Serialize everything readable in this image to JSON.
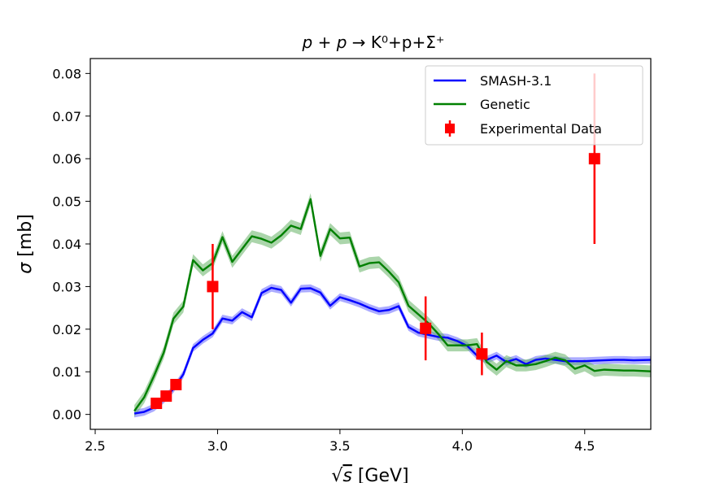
{
  "chart_data": {
    "type": "line",
    "title": "p + p → K⁰+p+Σ⁺",
    "title_parts": {
      "p1": "p",
      "plus": " + ",
      "p2": "p",
      "arrow": " → ",
      "rest": "K⁰+p+Σ⁺"
    },
    "xlabel": "√s [GeV]",
    "xlabel_parts": {
      "sqrt": "√",
      "s": "s",
      "unit": " [GeV]"
    },
    "ylabel": "σ [mb]",
    "ylabel_parts": {
      "sigma": "σ",
      "unit": " [mb]"
    },
    "xlim": [
      2.48,
      4.77
    ],
    "ylim": [
      -0.0035,
      0.0835
    ],
    "xticks": [
      2.5,
      3.0,
      3.5,
      4.0,
      4.5
    ],
    "xtick_labels": [
      "2.5",
      "3.0",
      "3.5",
      "4.0",
      "4.5"
    ],
    "yticks": [
      0.0,
      0.01,
      0.02,
      0.03,
      0.04,
      0.05,
      0.06,
      0.07,
      0.08
    ],
    "ytick_labels": [
      "0.00",
      "0.01",
      "0.02",
      "0.03",
      "0.04",
      "0.05",
      "0.06",
      "0.07",
      "0.08"
    ],
    "legend_position": "upper right",
    "series": [
      {
        "name": "SMASH-3.1",
        "color": "#0000ff",
        "band_color": "#6666ff",
        "x": [
          2.66,
          2.7,
          2.74,
          2.78,
          2.82,
          2.86,
          2.9,
          2.94,
          2.98,
          3.02,
          3.06,
          3.1,
          3.14,
          3.18,
          3.22,
          3.26,
          3.3,
          3.34,
          3.38,
          3.42,
          3.46,
          3.5,
          3.54,
          3.58,
          3.62,
          3.66,
          3.7,
          3.74,
          3.78,
          3.82,
          3.86,
          3.9,
          3.94,
          3.98,
          4.02,
          4.06,
          4.1,
          4.14,
          4.18,
          4.22,
          4.26,
          4.3,
          4.34,
          4.38,
          4.42,
          4.46,
          4.5,
          4.54,
          4.58,
          4.62,
          4.66,
          4.7,
          4.77
        ],
        "y": [
          0.0002,
          0.0006,
          0.0016,
          0.0035,
          0.006,
          0.0094,
          0.0156,
          0.0175,
          0.019,
          0.0225,
          0.022,
          0.024,
          0.0228,
          0.0285,
          0.0297,
          0.0292,
          0.0262,
          0.0295,
          0.0296,
          0.0286,
          0.0255,
          0.0275,
          0.0268,
          0.026,
          0.025,
          0.0242,
          0.0245,
          0.0254,
          0.0205,
          0.0192,
          0.0187,
          0.0182,
          0.018,
          0.0172,
          0.0161,
          0.0138,
          0.0128,
          0.0138,
          0.0123,
          0.013,
          0.0118,
          0.0128,
          0.0131,
          0.0128,
          0.0125,
          0.0125,
          0.0125,
          0.0126,
          0.0127,
          0.0128,
          0.0128,
          0.0127,
          0.0128
        ],
        "band_halfwidth": 0.0009
      },
      {
        "name": "Genetic",
        "color": "#008000",
        "band_color": "#66b366",
        "x": [
          2.66,
          2.7,
          2.74,
          2.78,
          2.82,
          2.86,
          2.9,
          2.94,
          2.98,
          3.02,
          3.06,
          3.1,
          3.14,
          3.18,
          3.22,
          3.26,
          3.3,
          3.34,
          3.38,
          3.42,
          3.46,
          3.5,
          3.54,
          3.58,
          3.62,
          3.66,
          3.7,
          3.74,
          3.78,
          3.82,
          3.86,
          3.9,
          3.94,
          3.98,
          4.02,
          4.06,
          4.1,
          4.14,
          4.18,
          4.22,
          4.26,
          4.3,
          4.34,
          4.38,
          4.42,
          4.46,
          4.5,
          4.54,
          4.58,
          4.62,
          4.66,
          4.7,
          4.77
        ],
        "y": [
          0.0008,
          0.004,
          0.009,
          0.0145,
          0.0225,
          0.0253,
          0.0362,
          0.0338,
          0.0355,
          0.0416,
          0.0358,
          0.0388,
          0.0418,
          0.0412,
          0.0403,
          0.042,
          0.0443,
          0.0435,
          0.0505,
          0.0372,
          0.0435,
          0.0413,
          0.0415,
          0.0347,
          0.0355,
          0.0357,
          0.0335,
          0.031,
          0.0255,
          0.0235,
          0.0215,
          0.019,
          0.0162,
          0.0162,
          0.0162,
          0.0165,
          0.0123,
          0.0105,
          0.0125,
          0.0115,
          0.0115,
          0.0118,
          0.0125,
          0.0133,
          0.0127,
          0.0107,
          0.0115,
          0.0102,
          0.0105,
          0.0104,
          0.0103,
          0.0103,
          0.0101
        ],
        "band_halfwidth": 0.0014
      }
    ],
    "experimental": {
      "name": "Experimental Data",
      "color": "#ff0000",
      "points": [
        {
          "x": 2.75,
          "y": 0.0026,
          "err": 0.0
        },
        {
          "x": 2.79,
          "y": 0.0043,
          "err": 0.0
        },
        {
          "x": 2.83,
          "y": 0.007,
          "err": 0.0
        },
        {
          "x": 2.98,
          "y": 0.03,
          "err": 0.01
        },
        {
          "x": 3.85,
          "y": 0.0202,
          "err": 0.0075
        },
        {
          "x": 4.08,
          "y": 0.0142,
          "err": 0.005
        },
        {
          "x": 4.54,
          "y": 0.06,
          "err": 0.02
        }
      ]
    },
    "legend": [
      "SMASH-3.1",
      "Genetic",
      "Experimental Data"
    ]
  }
}
